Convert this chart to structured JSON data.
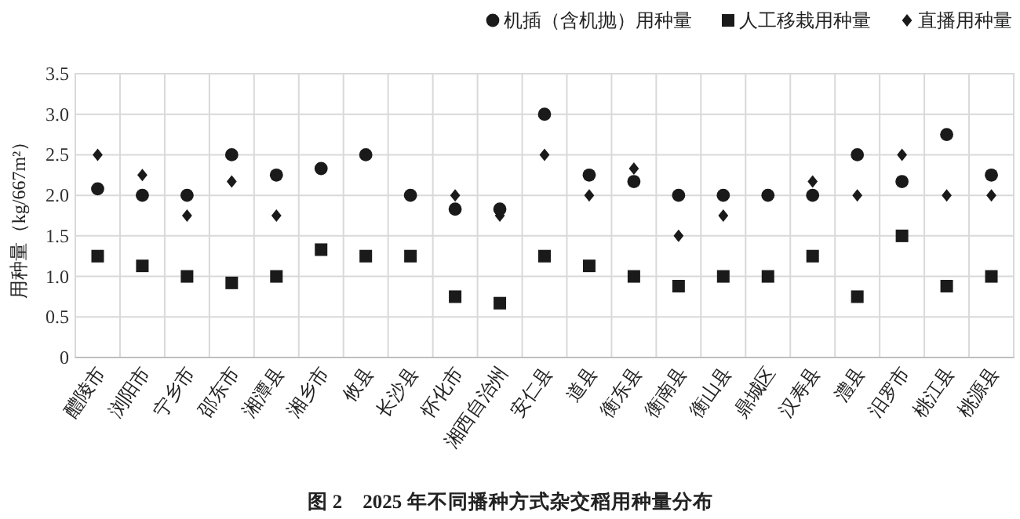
{
  "chart_data": {
    "type": "scatter",
    "title": "图 2　2025 年不同播种方式杂交稻用种量分布",
    "ylabel": "用种量（kg/667m²）",
    "categories": [
      "醴陵市",
      "浏阳市",
      "宁乡市",
      "邵东市",
      "湘潭县",
      "湘乡市",
      "攸县",
      "长沙县",
      "怀化市",
      "湘西自治州",
      "安仁县",
      "道县",
      "衡东县",
      "衡南县",
      "衡山县",
      "鼎城区",
      "汉寿县",
      "澧县",
      "汨罗市",
      "桃江县",
      "桃源县"
    ],
    "series": [
      {
        "name": "机插（含机抛）用种量",
        "color": "#1a1a1a",
        "marker": "circle",
        "values": [
          2.08,
          2.0,
          2.0,
          2.5,
          2.25,
          2.33,
          2.5,
          2.0,
          1.83,
          1.83,
          3.0,
          2.25,
          2.17,
          2.0,
          2.0,
          2.0,
          2.0,
          2.5,
          2.17,
          2.75,
          2.25
        ]
      },
      {
        "name": "人工移栽用种量",
        "color": "#1a1a1a",
        "marker": "square",
        "values": [
          1.25,
          1.13,
          1.0,
          0.92,
          1.0,
          1.33,
          1.25,
          1.25,
          0.75,
          0.67,
          1.25,
          1.13,
          1.0,
          0.88,
          1.0,
          1.0,
          1.25,
          0.75,
          1.5,
          0.88,
          1.0
        ]
      },
      {
        "name": "直播用种量",
        "color": "#1a1a1a",
        "marker": "diamond",
        "values": [
          2.5,
          2.25,
          1.75,
          2.17,
          1.75,
          null,
          null,
          null,
          2.0,
          1.75,
          2.5,
          2.0,
          2.33,
          1.5,
          1.75,
          null,
          2.17,
          2.0,
          2.5,
          2.0,
          2.0
        ]
      }
    ],
    "ylim": [
      0,
      3.5
    ],
    "yticks": [
      0,
      {
        "value": 0.5,
        "label": "0.5"
      },
      {
        "value": 1,
        "label": "1.0"
      },
      {
        "value": 1.5,
        "label": "1.5"
      },
      {
        "value": 2,
        "label": "2.0"
      },
      {
        "value": 2.5,
        "label": "2.5"
      },
      {
        "value": 3,
        "label": "3.0"
      },
      {
        "value": 3.5,
        "label": "3.5"
      }
    ],
    "grid": true,
    "legend": "top right"
  }
}
